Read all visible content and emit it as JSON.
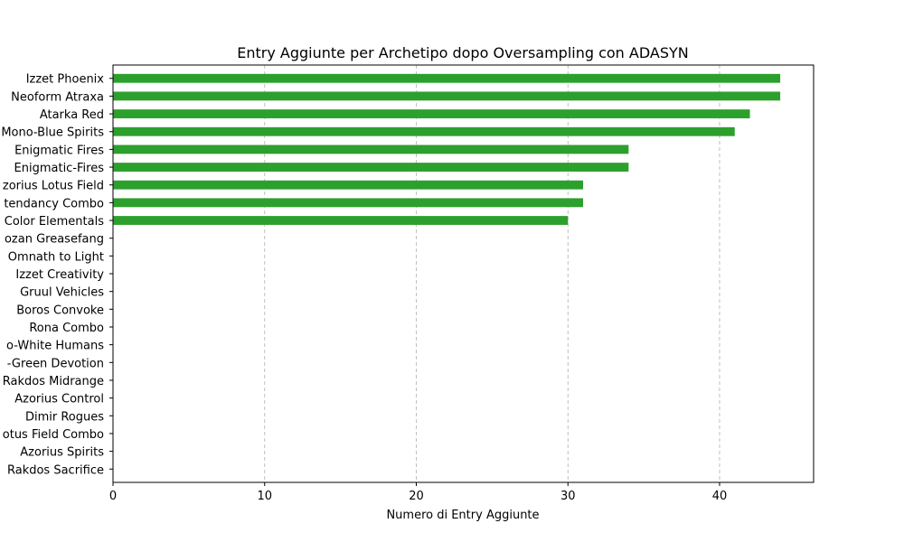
{
  "chart_data": {
    "type": "bar",
    "orientation": "horizontal",
    "title": "Entry Aggiunte per Archetipo dopo Oversampling con ADASYN",
    "xlabel": "Numero di Entry Aggiunte",
    "ylabel": "",
    "xlim": [
      0,
      46.2
    ],
    "xticks": [
      0,
      10,
      20,
      30,
      40
    ],
    "grid": "x-dashed",
    "bar_color": "#2ca02c",
    "categories": [
      "Izzet Phoenix",
      "Neoform Atraxa",
      "Atarka Red",
      "Mono-Blue Spirits",
      "Enigmatic Fires",
      "Enigmatic-Fires",
      "zorius Lotus Field",
      "tendancy Combo",
      "Color Elementals",
      "ozan Greasefang",
      "Omnath to Light",
      "Izzet Creativity",
      "Gruul Vehicles",
      "Boros Convoke",
      "Rona Combo",
      "o-White Humans",
      "-Green Devotion",
      "Rakdos Midrange",
      "Azorius Control",
      "Dimir Rogues",
      "otus Field Combo",
      "Azorius Spirits",
      "Rakdos Sacrifice"
    ],
    "values": [
      44,
      44,
      42,
      41,
      34,
      34,
      31,
      31,
      30,
      0,
      0,
      0,
      0,
      0,
      0,
      0,
      0,
      0,
      0,
      0,
      0,
      0,
      0
    ]
  }
}
